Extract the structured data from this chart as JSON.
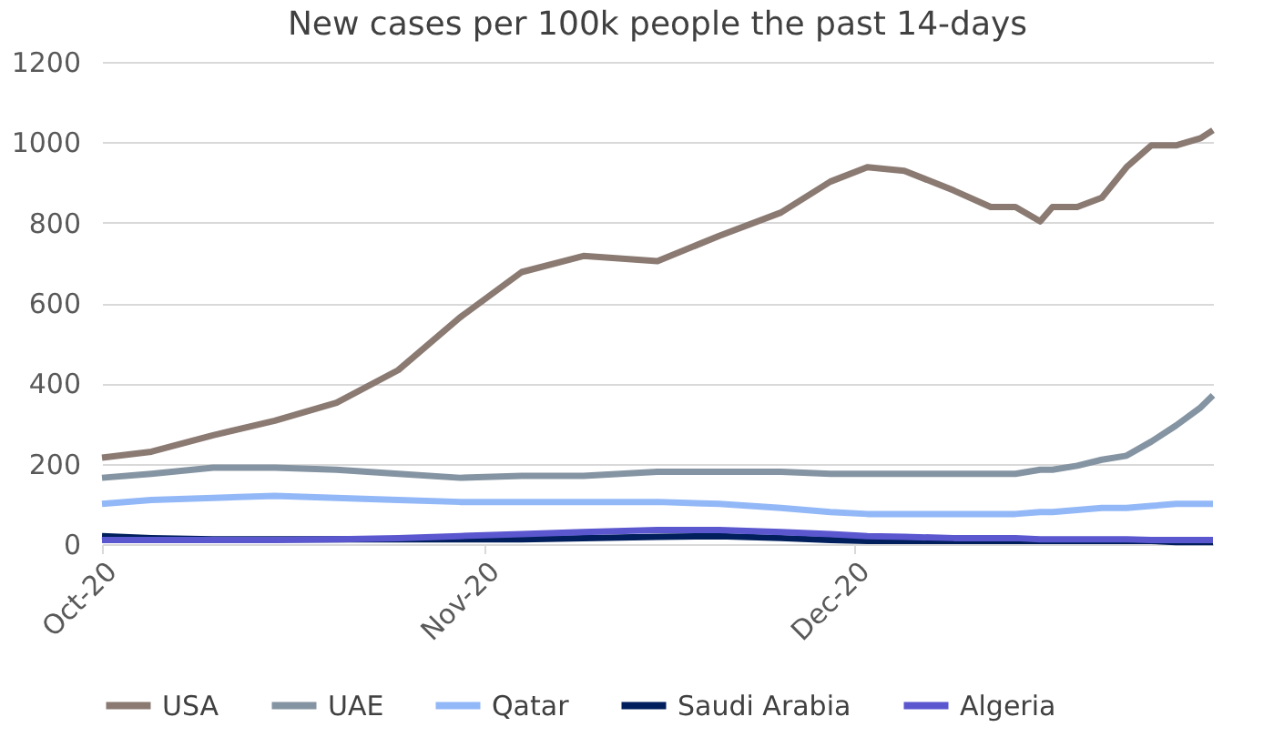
{
  "chart_data": {
    "type": "line",
    "title": "New cases per 100k people the past 14-days",
    "x": [
      "2020-10-01",
      "2020-10-05",
      "2020-10-10",
      "2020-10-15",
      "2020-10-20",
      "2020-10-25",
      "2020-10-30",
      "2020-11-04",
      "2020-11-09",
      "2020-11-15",
      "2020-11-20",
      "2020-11-25",
      "2020-11-29",
      "2020-12-02",
      "2020-12-05",
      "2020-12-09",
      "2020-12-12",
      "2020-12-14",
      "2020-12-16",
      "2020-12-17",
      "2020-12-19",
      "2020-12-21",
      "2020-12-23",
      "2020-12-25",
      "2020-12-27",
      "2020-12-29",
      "2020-12-30"
    ],
    "series": [
      {
        "name": "USA",
        "color": "#8a7a72",
        "values": [
          215,
          230,
          271,
          307,
          352,
          433,
          564,
          677,
          717,
          704,
          767,
          825,
          902,
          938,
          929,
          880,
          839,
          839,
          803,
          839,
          839,
          862,
          938,
          992,
          992,
          1010,
          1030
        ]
      },
      {
        "name": "UAE",
        "color": "#8594a2",
        "values": [
          165,
          175,
          190,
          190,
          185,
          175,
          165,
          170,
          170,
          180,
          180,
          180,
          175,
          175,
          175,
          175,
          175,
          175,
          185,
          185,
          195,
          210,
          220,
          255,
          295,
          340,
          370
        ]
      },
      {
        "name": "Qatar",
        "color": "#93b8f7",
        "values": [
          100,
          110,
          115,
          120,
          115,
          110,
          105,
          105,
          105,
          105,
          100,
          90,
          80,
          75,
          75,
          75,
          75,
          75,
          80,
          80,
          85,
          90,
          90,
          95,
          100,
          100,
          100
        ]
      },
      {
        "name": "Saudi Arabia",
        "color": "#001f5c",
        "values": [
          20,
          15,
          12,
          12,
          12,
          12,
          12,
          12,
          15,
          18,
          20,
          15,
          10,
          8,
          8,
          8,
          8,
          8,
          8,
          8,
          8,
          8,
          8,
          8,
          5,
          5,
          5
        ]
      },
      {
        "name": "Algeria",
        "color": "#5b57cf",
        "values": [
          10,
          10,
          10,
          10,
          12,
          15,
          20,
          25,
          30,
          35,
          35,
          30,
          25,
          20,
          18,
          15,
          15,
          15,
          12,
          12,
          12,
          12,
          12,
          10,
          10,
          10,
          10
        ]
      }
    ],
    "ylim": [
      0,
      1200
    ],
    "yticks": [
      0,
      200,
      400,
      600,
      800,
      1000,
      1200
    ],
    "xlim": [
      "2020-10-01",
      "2020-12-30"
    ],
    "xticks": [
      {
        "value": "2020-10-01",
        "label": "Oct-20"
      },
      {
        "value": "2020-11-01",
        "label": "Nov-20"
      },
      {
        "value": "2020-12-01",
        "label": "Dec-20"
      }
    ],
    "grid": "y",
    "legend": "bottom",
    "line_style": "solid",
    "marker": "none"
  }
}
